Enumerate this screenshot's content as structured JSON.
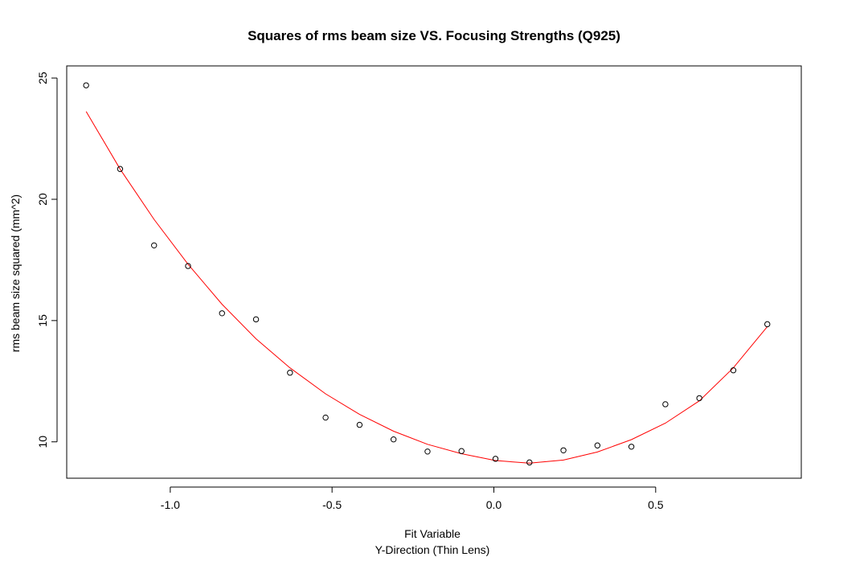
{
  "chart_data": {
    "type": "scatter",
    "title": "Squares of rms beam size VS. Focusing Strengths (Q925)",
    "xlabel": "Fit Variable",
    "xlabel2": "Y-Direction (Thin Lens)",
    "ylabel": "rms beam size squared (mm^2)",
    "xlim": [
      -1.32,
      0.95
    ],
    "ylim": [
      8.5,
      25.5
    ],
    "x_ticks": [
      -1.0,
      -0.5,
      0.0,
      0.5
    ],
    "x_tick_labels": [
      "-1.0",
      "-0.5",
      "0.0",
      "0.5"
    ],
    "y_ticks": [
      10,
      15,
      20,
      25
    ],
    "y_tick_labels": [
      "10",
      "15",
      "20",
      "25"
    ],
    "grid": false,
    "series": [
      {
        "kind": "points",
        "marker": "open-circle",
        "color": "#000000",
        "x": [
          -1.26,
          -1.155,
          -1.05,
          -0.945,
          -0.84,
          -0.735,
          -0.63,
          -0.52,
          -0.415,
          -0.31,
          -0.205,
          -0.1,
          0.005,
          0.11,
          0.215,
          0.32,
          0.425,
          0.53,
          0.635,
          0.74,
          0.845
        ],
        "y": [
          24.7,
          21.25,
          18.1,
          17.25,
          15.3,
          15.05,
          12.85,
          11.0,
          10.7,
          10.1,
          9.6,
          9.62,
          9.3,
          9.15,
          9.65,
          9.85,
          9.8,
          11.55,
          11.8,
          12.95,
          14.85
        ]
      },
      {
        "kind": "line",
        "color": "#ff0000",
        "x": [
          -1.26,
          -1.155,
          -1.05,
          -0.945,
          -0.84,
          -0.735,
          -0.63,
          -0.52,
          -0.415,
          -0.31,
          -0.205,
          -0.1,
          0.005,
          0.11,
          0.215,
          0.32,
          0.425,
          0.53,
          0.635,
          0.74,
          0.845
        ],
        "y": [
          23.62,
          21.25,
          19.17,
          17.32,
          15.67,
          14.25,
          13.05,
          11.98,
          11.13,
          10.44,
          9.9,
          9.51,
          9.23,
          9.12,
          9.25,
          9.58,
          10.09,
          10.77,
          11.69,
          13.05,
          14.75
        ]
      }
    ]
  }
}
